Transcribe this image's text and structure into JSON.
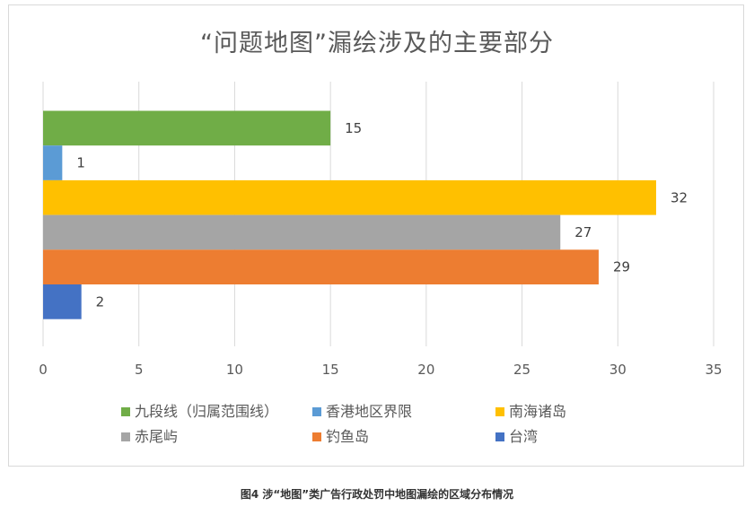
{
  "chart_data": {
    "type": "bar",
    "orientation": "horizontal",
    "title": "“问题地图”漏绘涉及的主要部分",
    "xlim": [
      0,
      35
    ],
    "x_ticks": [
      "0",
      "5",
      "10",
      "15",
      "20",
      "25",
      "30",
      "35"
    ],
    "grid": "vertical",
    "legend_position": "bottom",
    "series": [
      {
        "name": "九段线（归属范围线）",
        "value": 15,
        "color": "#70ad47"
      },
      {
        "name": "香港地区界限",
        "value": 1,
        "color": "#5b9bd5"
      },
      {
        "name": "南海诸岛",
        "value": 32,
        "color": "#ffc000"
      },
      {
        "name": "赤尾屿",
        "value": 27,
        "color": "#a5a5a5"
      },
      {
        "name": "钓鱼岛",
        "value": 29,
        "color": "#ed7d31"
      },
      {
        "name": "台湾",
        "value": 2,
        "color": "#4472c4"
      }
    ]
  },
  "caption": "图4 涉“地图”类广告行政处罚中地图漏绘的区域分布情况"
}
